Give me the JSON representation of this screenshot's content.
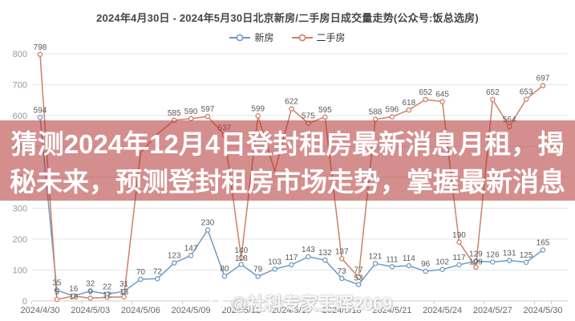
{
  "title": "2024年4月30日 - 2024年5月30日北京新房/二手房日成交量走势(公众号:饭总选房)",
  "legend": [
    {
      "label": "新房",
      "color": "#6e9bc5"
    },
    {
      "label": "二手房",
      "color": "#cd8164"
    }
  ],
  "overlay": {
    "line1": "猜测2024年12月4日登封租房最新消息月租，揭",
    "line2": "秘未来，预测登封租房市场走势，掌握最新消息",
    "background_color": "rgba(177,50,50,0.55)",
    "text_color": "#ffffff"
  },
  "watermark": {
    "icon": "weibo-icon",
    "text": "@社科专家王晖2069"
  },
  "chart_data": {
    "type": "line",
    "title": "2024年4月30日 - 2024年5月30日北京新房/二手房日成交量走势(公众号:饭总选房)",
    "x": [
      "2024/4/30",
      "2024/5/01",
      "2024/5/02",
      "2024/5/03",
      "2024/5/04",
      "2024/5/05",
      "2024/5/06",
      "2024/5/07",
      "2024/5/08",
      "2024/5/09",
      "2024/5/10",
      "2024/5/11",
      "2024/5/12",
      "2024/5/13",
      "2024/5/14",
      "2024/5/15",
      "2024/5/16",
      "2024/5/17",
      "2024/5/18",
      "2024/5/19",
      "2024/5/20",
      "2024/5/21",
      "2024/5/22",
      "2024/5/23",
      "2024/5/24",
      "2024/5/25",
      "2024/5/26",
      "2024/5/27",
      "2024/5/28",
      "2024/5/29",
      "2024/5/30"
    ],
    "x_tick_labels": [
      "2024/4/30",
      "2024/5/03",
      "2024/5/06",
      "2024/5/09",
      "2024/5/12",
      "2024/5/15",
      "2024/5/18",
      "2024/5/21",
      "2024/5/24",
      "2024/5/27",
      "2024/5/30"
    ],
    "ylabel": "",
    "xlabel": "",
    "ylim": [
      0,
      800
    ],
    "ytick_step": 100,
    "grid": true,
    "legend_position": "top",
    "series": [
      {
        "name": "新房",
        "color": "#6e9bc5",
        "values": [
          594,
          35,
          16,
          32,
          22,
          31,
          70,
          72,
          123,
          147,
          230,
          80,
          118,
          79,
          103,
          117,
          143,
          132,
          73,
          53,
          121,
          111,
          114,
          96,
          102,
          117,
          129,
          126,
          131,
          125,
          165
        ],
        "estimated_indices": []
      },
      {
        "name": "二手房",
        "color": "#cd8164",
        "values": [
          798,
          5,
          16,
          9,
          12,
          13,
          480,
          540,
          585,
          590,
          597,
          537,
          140,
          599,
          420,
          622,
          575,
          595,
          137,
          77,
          588,
          596,
          618,
          652,
          645,
          190,
          109,
          652,
          564,
          653,
          697
        ],
        "estimated_indices": [
          6,
          7,
          14
        ],
        "note": "values at estimated_indices are hidden behind the red text band in the source image"
      }
    ]
  }
}
